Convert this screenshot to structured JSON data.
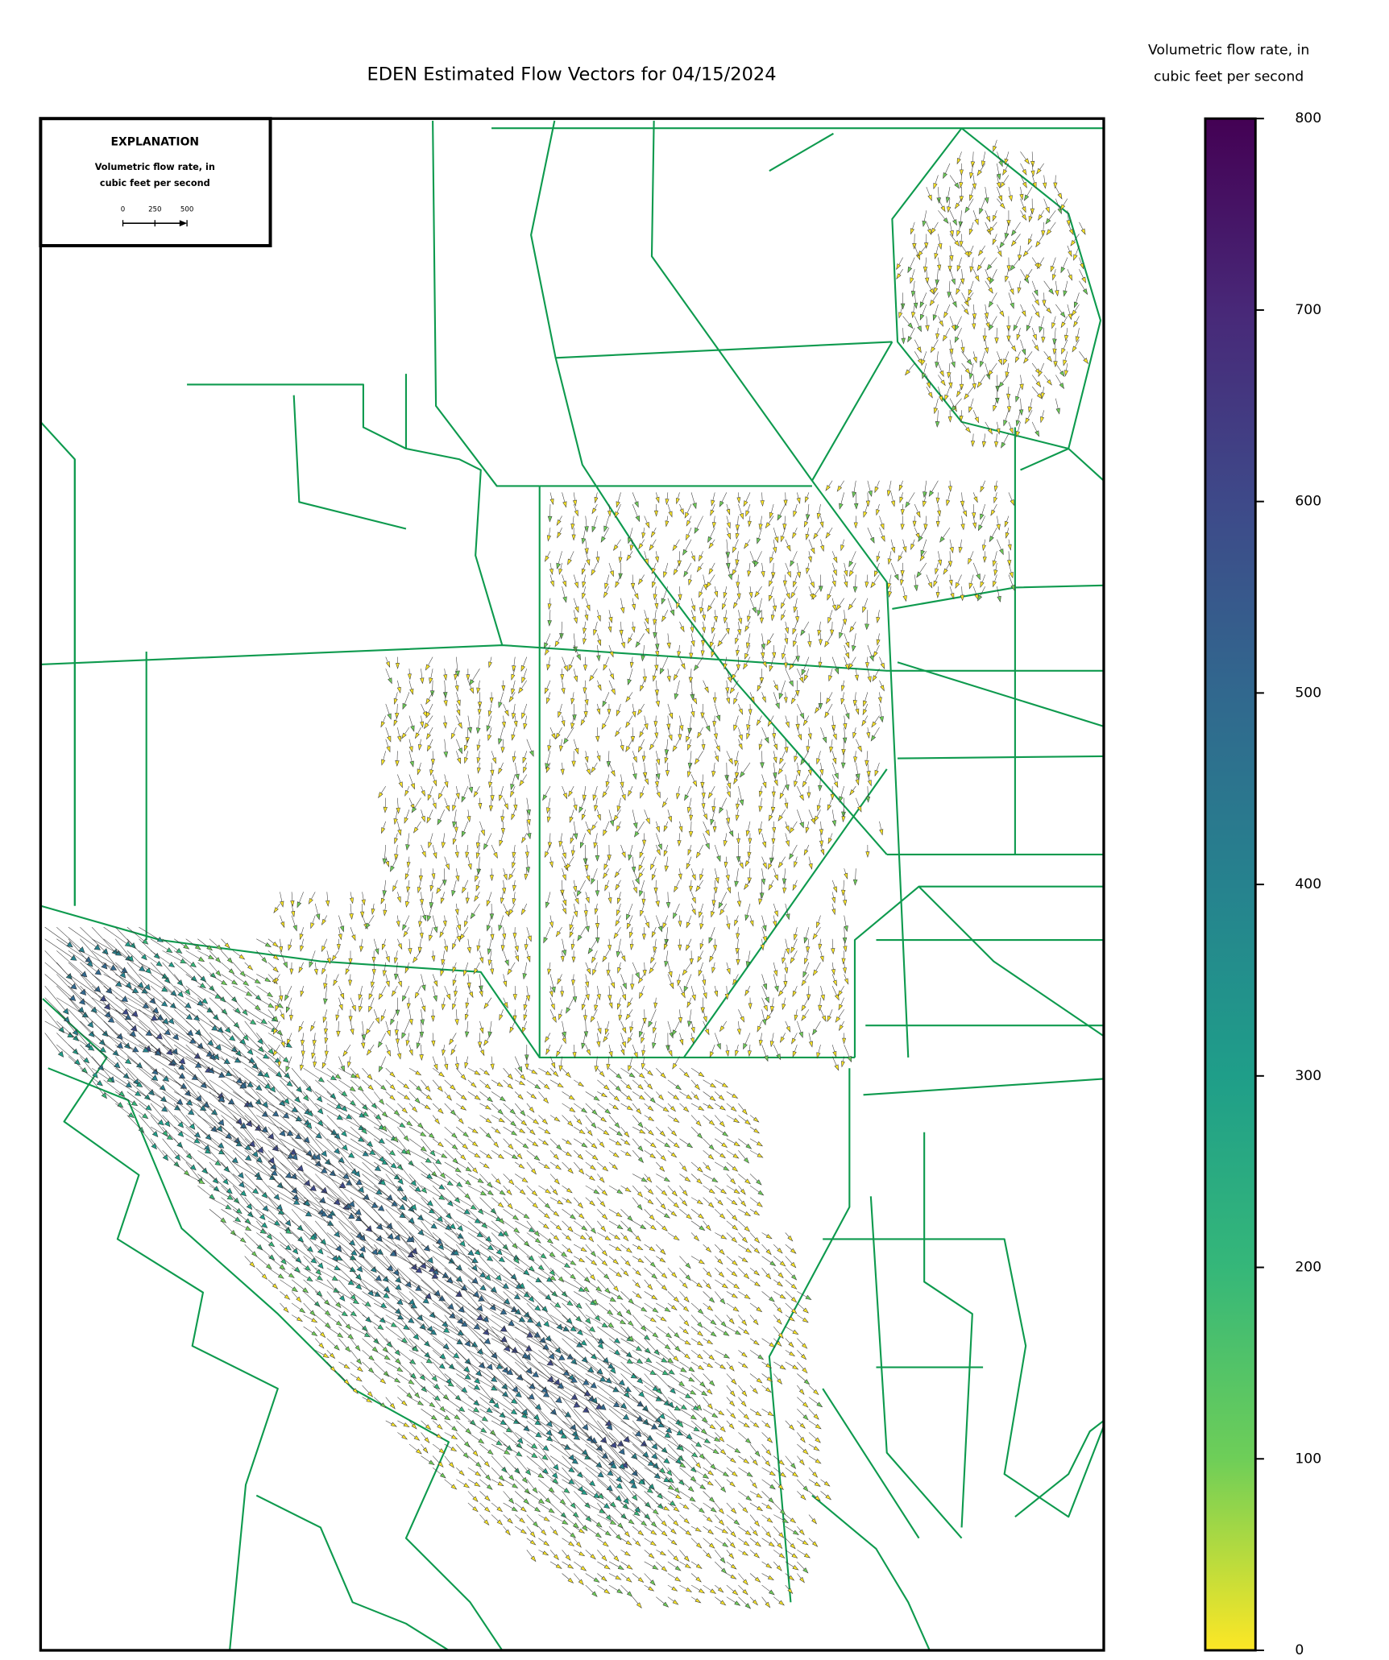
{
  "title": "EDEN Estimated Flow Vectors for 04/15/2024",
  "colorbar": {
    "title": [
      "Volumetric flow rate, in",
      "cubic feet per second"
    ],
    "lim": [
      0,
      800
    ],
    "ticks": [
      0,
      100,
      200,
      300,
      400,
      500,
      600,
      700,
      800
    ]
  },
  "explanation": {
    "title": "EXPLANATION",
    "label": [
      "Volumetric flow rate, in",
      "cubic feet per second"
    ],
    "scale_ticks": [
      0,
      250,
      500
    ]
  }
}
